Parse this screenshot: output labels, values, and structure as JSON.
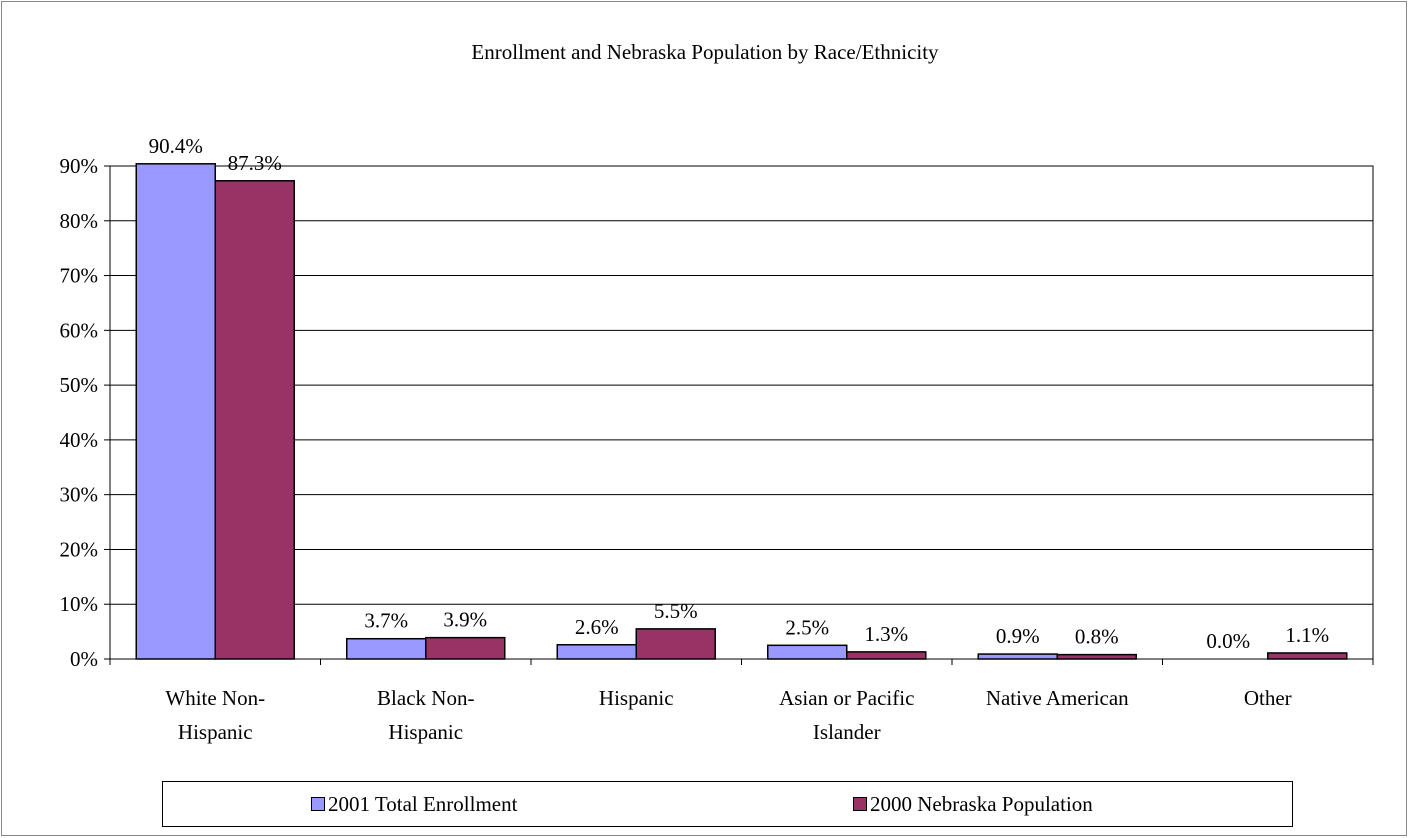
{
  "chart_data": {
    "type": "bar",
    "title": "Enrollment and Nebraska Population by Race/Ethnicity",
    "categories": [
      [
        "White Non-",
        "Hispanic"
      ],
      [
        "Black Non-",
        "Hispanic"
      ],
      [
        "Hispanic"
      ],
      [
        "Asian or Pacific",
        "Islander"
      ],
      [
        "Native American"
      ],
      [
        "Other"
      ]
    ],
    "series": [
      {
        "name": "2001 Total Enrollment",
        "color": "#9999ff",
        "values": [
          90.4,
          3.7,
          2.6,
          2.5,
          0.9,
          0.0
        ],
        "labels": [
          "90.4%",
          "3.7%",
          "2.6%",
          "2.5%",
          "0.9%",
          "0.0%"
        ]
      },
      {
        "name": "2000 Nebraska Population",
        "color": "#993366",
        "values": [
          87.3,
          3.9,
          5.5,
          1.3,
          0.8,
          1.1
        ],
        "labels": [
          "87.3%",
          "3.9%",
          "5.5%",
          "1.3%",
          "0.8%",
          "1.1%"
        ]
      }
    ],
    "ylim": [
      0,
      90
    ],
    "yticks": [
      0,
      10,
      20,
      30,
      40,
      50,
      60,
      70,
      80,
      90
    ],
    "ytick_labels": [
      "0%",
      "10%",
      "20%",
      "30%",
      "40%",
      "50%",
      "60%",
      "70%",
      "80%",
      "90%"
    ],
    "grid": true,
    "legend_position": "bottom"
  }
}
